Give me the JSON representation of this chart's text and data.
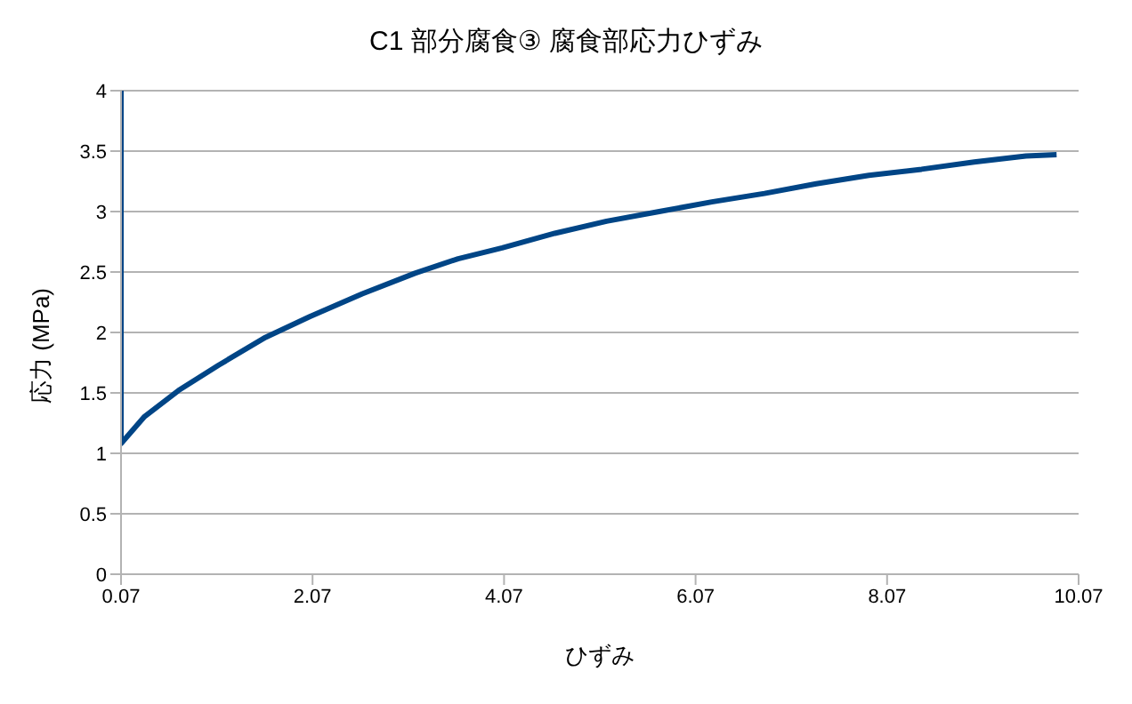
{
  "chart_data": {
    "type": "line",
    "title": "C1  部分腐食③ 腐食部応力ひずみ",
    "xlabel": "ひずみ",
    "ylabel": "応力 (MPa)",
    "x": [
      0.07,
      0.07,
      0.31,
      0.67,
      1.09,
      1.58,
      2.04,
      2.59,
      3.14,
      3.59,
      4.05,
      4.6,
      5.14,
      5.69,
      6.24,
      6.79,
      7.33,
      7.88,
      8.43,
      8.98,
      9.52,
      9.84
    ],
    "series": [
      {
        "color": "#004586",
        "values": [
          4,
          1.08,
          1.3,
          1.52,
          1.73,
          1.96,
          2.13,
          2.32,
          2.49,
          2.61,
          2.7,
          2.82,
          2.92,
          3.0,
          3.08,
          3.15,
          3.23,
          3.3,
          3.35,
          3.41,
          3.46,
          3.47
        ]
      }
    ],
    "xlim": [
      0.07,
      10.07
    ],
    "xticks": [
      0.07,
      2.07,
      4.07,
      6.07,
      8.07,
      10.07
    ],
    "ylim": [
      0,
      4
    ],
    "yticks": [
      0,
      0.5,
      1,
      1.5,
      2,
      2.5,
      3,
      3.5,
      4
    ],
    "grid": "y",
    "marker": "none",
    "line_style": "solid"
  }
}
